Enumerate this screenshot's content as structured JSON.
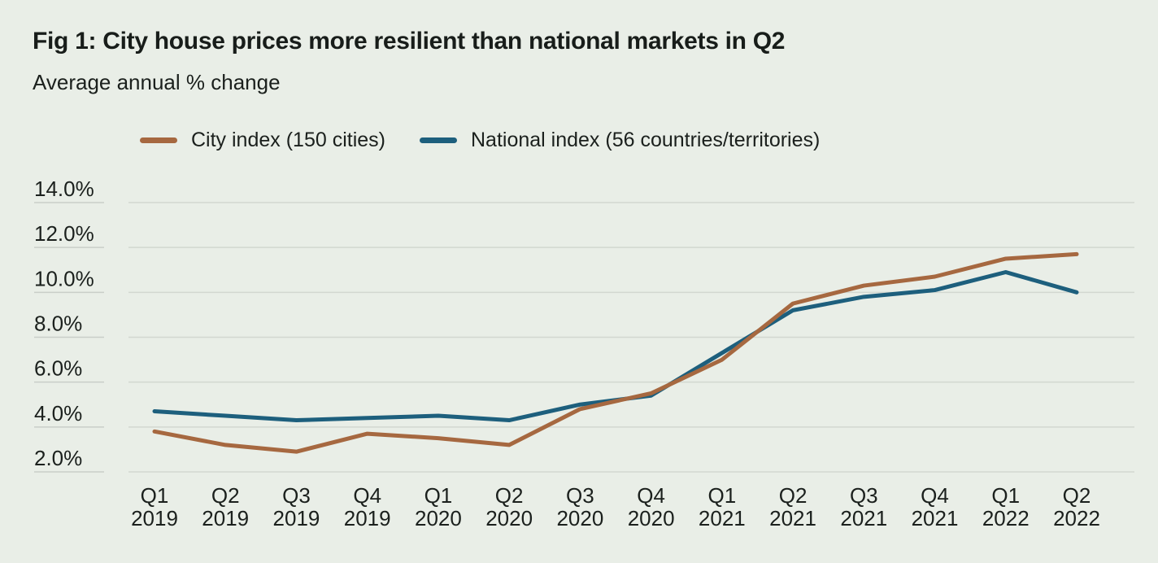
{
  "header": {
    "title": "Fig 1: City house prices more resilient than national markets in Q2",
    "subtitle": "Average annual % change"
  },
  "colors": {
    "background": "#e9eee7",
    "text": "#1b201d",
    "gridline": "#d2d7d0",
    "tick_underline": "#c9cec8",
    "city_line": "#a66840",
    "national_line": "#1d5f7d"
  },
  "chart_data": {
    "type": "line",
    "title": "Fig 1: City house prices more resilient than national markets in Q2",
    "subtitle": "Average annual % change",
    "categories": [
      "Q1 2019",
      "Q2 2019",
      "Q3 2019",
      "Q4 2019",
      "Q1 2020",
      "Q2 2020",
      "Q3 2020",
      "Q4 2020",
      "Q1 2021",
      "Q2 2021",
      "Q3 2021",
      "Q4 2021",
      "Q1 2022",
      "Q2 2022"
    ],
    "series": [
      {
        "name": "City index (150 cities)",
        "color": "#a66840",
        "values": [
          3.8,
          3.2,
          2.9,
          3.7,
          3.5,
          3.2,
          4.8,
          5.5,
          7.0,
          9.5,
          10.3,
          10.7,
          11.5,
          11.7
        ]
      },
      {
        "name": "National index (56 countries/territories)",
        "color": "#1d5f7d",
        "values": [
          4.7,
          4.5,
          4.3,
          4.4,
          4.5,
          4.3,
          5.0,
          5.4,
          7.3,
          9.2,
          9.8,
          10.1,
          10.9,
          10.0
        ]
      }
    ],
    "yticks": [
      14.0,
      12.0,
      10.0,
      8.0,
      6.0,
      4.0,
      2.0
    ],
    "ytick_suffix": "%",
    "ylim": [
      2,
      14
    ],
    "xlabel": "",
    "ylabel": "Average annual % change",
    "grid": true,
    "legend_position": "top"
  }
}
